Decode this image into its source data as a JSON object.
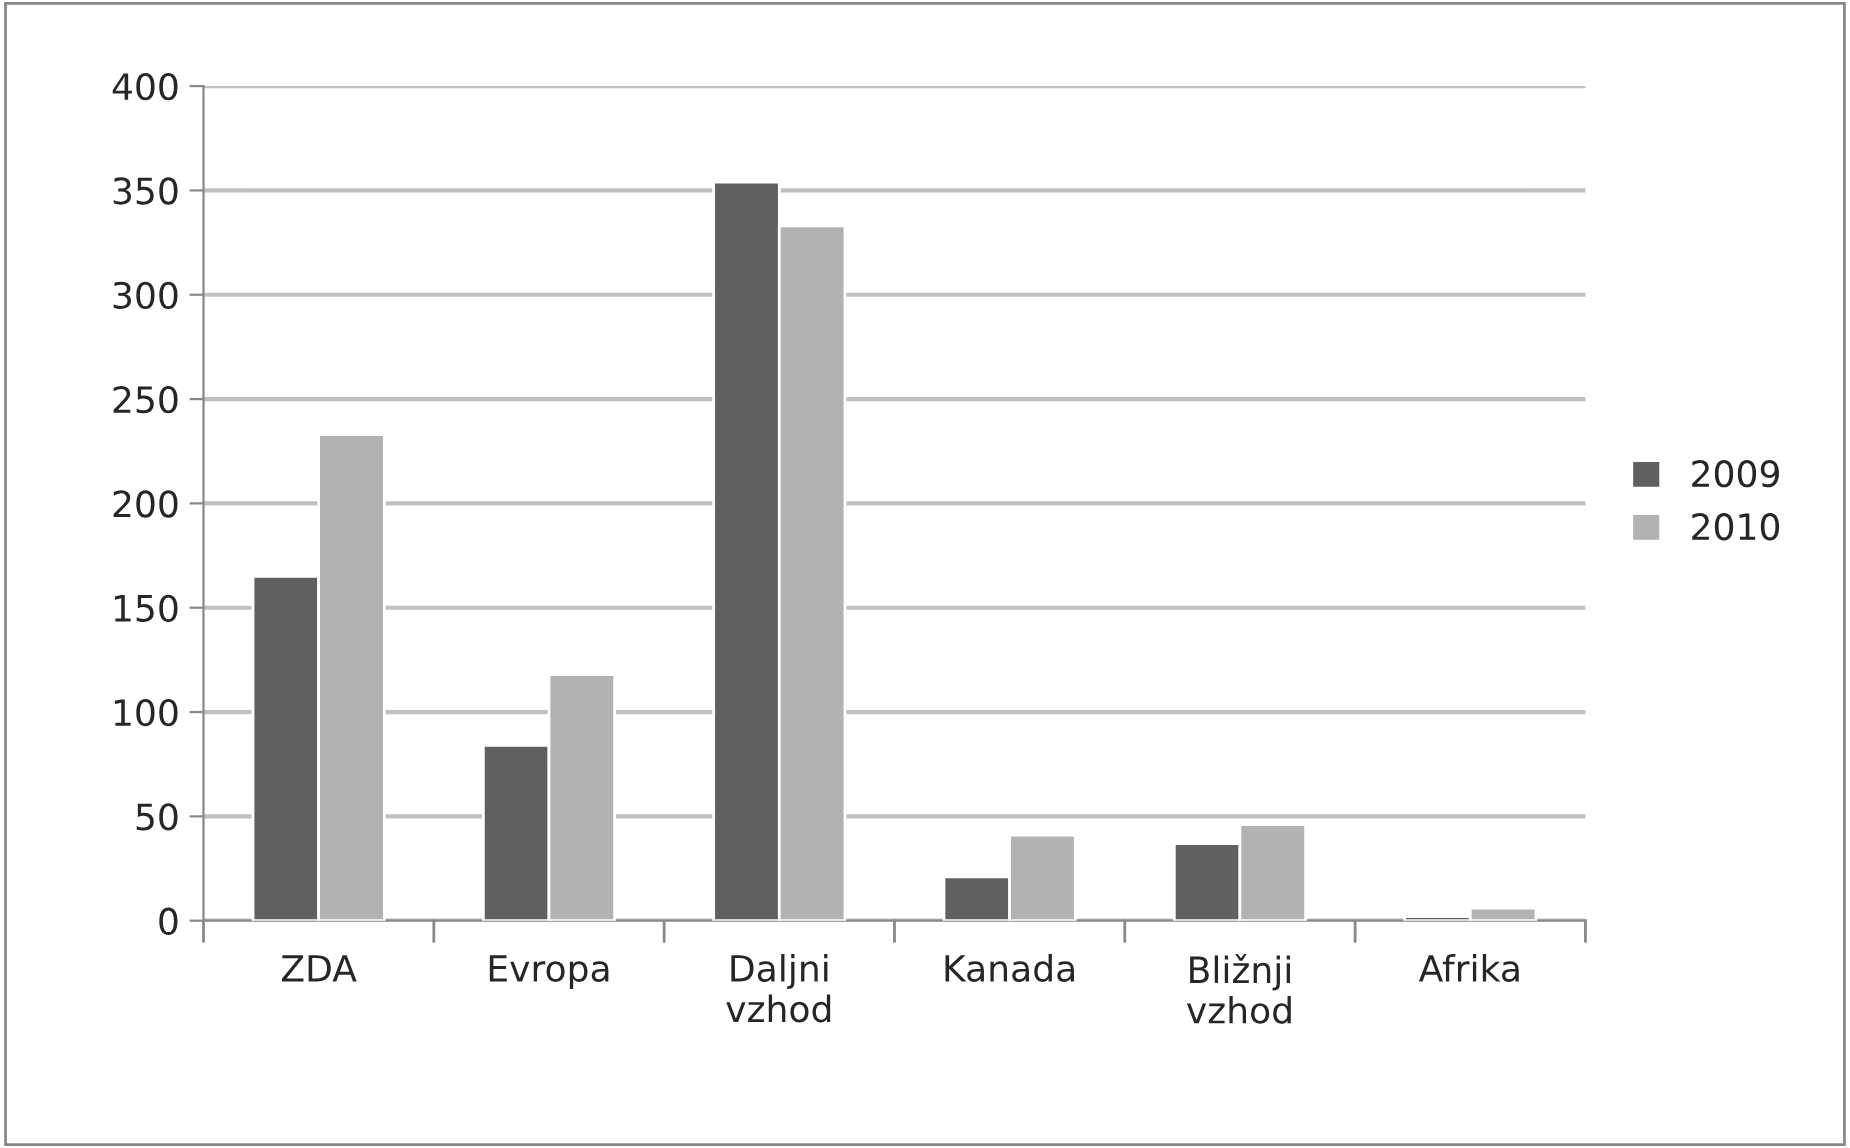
{
  "chart_data": {
    "type": "bar",
    "categories": [
      "ZDA",
      "Evropa",
      "Daljni\nvzhod",
      "Kanada",
      "Bližnji\nvzhod",
      "Afrika"
    ],
    "series": [
      {
        "name": "2009",
        "color": "#606060",
        "values": [
          165,
          84,
          354,
          21,
          37,
          2
        ]
      },
      {
        "name": "2010",
        "color": "#b2b2b2",
        "values": [
          233,
          118,
          333,
          41,
          46,
          6
        ]
      }
    ],
    "ylim": [
      0,
      400
    ],
    "yticks": [
      0,
      50,
      100,
      150,
      200,
      250,
      300,
      350,
      400
    ],
    "grid": "y",
    "legend": "right"
  }
}
